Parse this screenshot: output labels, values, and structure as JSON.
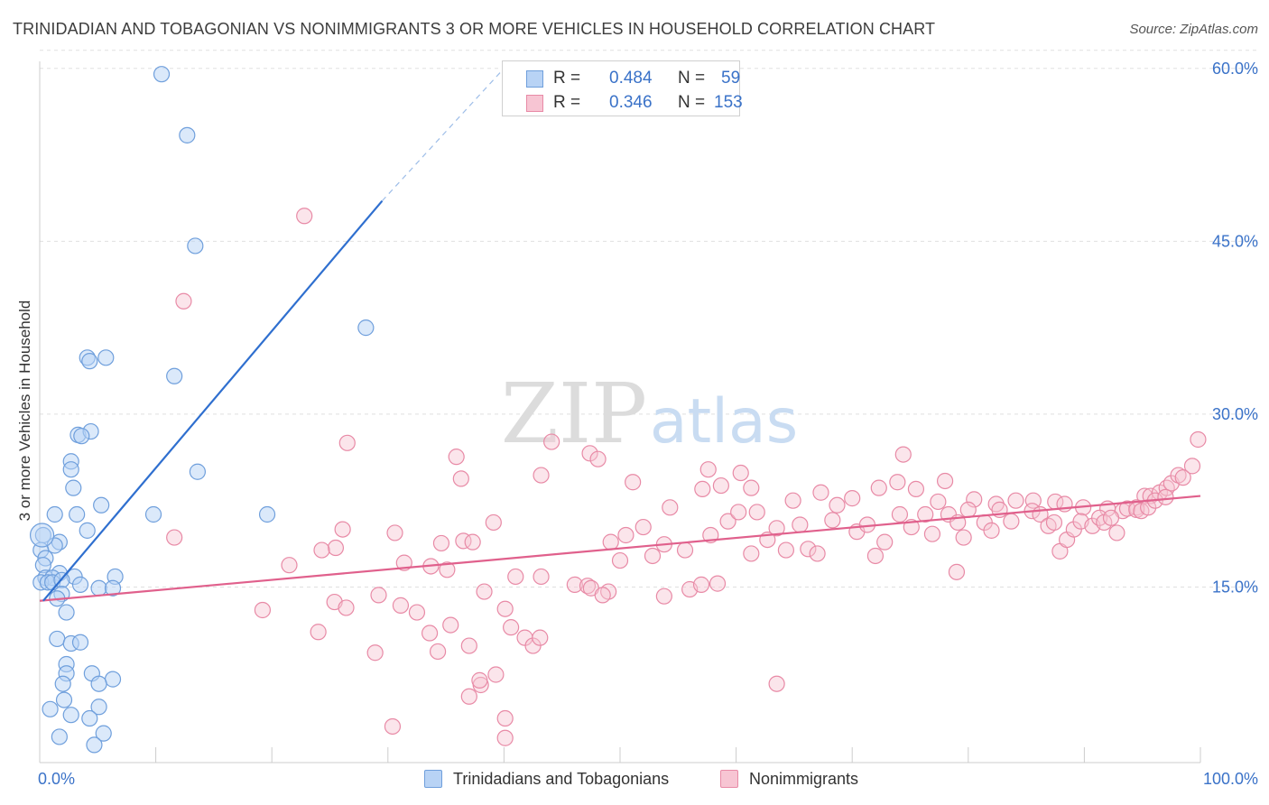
{
  "header": {
    "title": "TRINIDADIAN AND TOBAGONIAN VS NONIMMIGRANTS 3 OR MORE VEHICLES IN HOUSEHOLD CORRELATION CHART",
    "source": "Source: ZipAtlas.com"
  },
  "watermark": {
    "zip": "ZIP",
    "atlas": "atlas"
  },
  "legend_top": {
    "rows": [
      {
        "r_label": "R =",
        "r_value": "0.484",
        "n_label": "N =",
        "n_value": "59"
      },
      {
        "r_label": "R =",
        "r_value": "0.346",
        "n_label": "N =",
        "n_value": "153"
      }
    ]
  },
  "legend_bottom": {
    "items": [
      {
        "label": "Trinidadians and Tobagonians"
      },
      {
        "label": "Nonimmigrants"
      }
    ]
  },
  "colors": {
    "blue_fill": "#b8d3f5",
    "blue_stroke": "#6f9fdc",
    "blue_line": "#2f6fcf",
    "pink_fill": "#f7c5d3",
    "pink_stroke": "#e88aa6",
    "pink_line": "#e0608c",
    "tick_label": "#3a72c8",
    "grid": "#e0e0e0"
  },
  "chart_data": {
    "type": "scatter",
    "title": "TRINIDADIAN AND TOBAGONIAN VS NONIMMIGRANTS 3 OR MORE VEHICLES IN HOUSEHOLD CORRELATION CHART",
    "xlabel": "",
    "ylabel": "3 or more Vehicles in Household",
    "xlim": [
      0,
      100
    ],
    "ylim": [
      0,
      60
    ],
    "x_tick_labels": [
      "0.0%",
      "100.0%"
    ],
    "y_ticks": [
      15,
      30,
      45,
      60
    ],
    "y_tick_labels": [
      "15.0%",
      "30.0%",
      "45.0%",
      "60.0%"
    ],
    "grid": true,
    "legend_position": "top-center",
    "series": [
      {
        "name": "Trinidadians and Tobagonians",
        "r": 0.484,
        "n": 59,
        "trend": {
          "x": [
            0.3,
            29.5
          ],
          "y": [
            13.8,
            48.5
          ],
          "dash_to": [
            40,
            60
          ]
        },
        "points": [
          [
            10.5,
            59.5
          ],
          [
            12.7,
            54.2
          ],
          [
            13.4,
            44.6
          ],
          [
            28.1,
            37.5
          ],
          [
            11.6,
            33.3
          ],
          [
            4.1,
            34.9
          ],
          [
            5.7,
            34.9
          ],
          [
            4.3,
            34.6
          ],
          [
            3.3,
            28.2
          ],
          [
            4.4,
            28.5
          ],
          [
            3.6,
            28.1
          ],
          [
            2.7,
            25.9
          ],
          [
            2.7,
            25.2
          ],
          [
            13.6,
            25.0
          ],
          [
            2.9,
            23.6
          ],
          [
            5.3,
            22.1
          ],
          [
            1.3,
            21.3
          ],
          [
            3.2,
            21.3
          ],
          [
            9.8,
            21.3
          ],
          [
            19.6,
            21.3
          ],
          [
            4.1,
            19.9
          ],
          [
            0.3,
            19.5
          ],
          [
            1.7,
            18.9
          ],
          [
            1.3,
            18.6
          ],
          [
            0.1,
            18.2
          ],
          [
            0.5,
            17.5
          ],
          [
            0.3,
            16.9
          ],
          [
            1.7,
            16.2
          ],
          [
            0.5,
            15.8
          ],
          [
            1.1,
            15.8
          ],
          [
            3.0,
            15.9
          ],
          [
            6.5,
            15.9
          ],
          [
            0.1,
            15.4
          ],
          [
            0.7,
            15.4
          ],
          [
            1.1,
            15.4
          ],
          [
            1.9,
            15.6
          ],
          [
            3.5,
            15.2
          ],
          [
            5.1,
            14.9
          ],
          [
            6.3,
            14.9
          ],
          [
            1.9,
            14.4
          ],
          [
            1.5,
            14.0
          ],
          [
            2.3,
            12.8
          ],
          [
            1.5,
            10.5
          ],
          [
            2.7,
            10.1
          ],
          [
            3.5,
            10.2
          ],
          [
            2.3,
            8.3
          ],
          [
            2.3,
            7.5
          ],
          [
            4.5,
            7.5
          ],
          [
            6.3,
            7.0
          ],
          [
            2.0,
            6.6
          ],
          [
            5.1,
            6.6
          ],
          [
            2.1,
            5.2
          ],
          [
            0.9,
            4.4
          ],
          [
            5.1,
            4.6
          ],
          [
            2.7,
            3.9
          ],
          [
            4.3,
            3.6
          ],
          [
            5.5,
            2.3
          ],
          [
            4.7,
            1.3
          ],
          [
            1.7,
            2.0
          ]
        ]
      },
      {
        "name": "Nonimmigrants",
        "r": 0.346,
        "n": 153,
        "trend": {
          "x": [
            0,
            100
          ],
          "y": [
            13.8,
            22.9
          ]
        },
        "points": [
          [
            22.8,
            47.2
          ],
          [
            12.4,
            39.8
          ],
          [
            26.5,
            27.5
          ],
          [
            35.9,
            26.3
          ],
          [
            44.1,
            27.6
          ],
          [
            47.4,
            26.6
          ],
          [
            48.1,
            26.1
          ],
          [
            36.3,
            24.4
          ],
          [
            43.2,
            24.7
          ],
          [
            51.1,
            24.1
          ],
          [
            57.6,
            25.2
          ],
          [
            60.4,
            24.9
          ],
          [
            57.1,
            23.5
          ],
          [
            58.7,
            23.8
          ],
          [
            61.3,
            23.6
          ],
          [
            64.9,
            22.5
          ],
          [
            67.3,
            23.2
          ],
          [
            70.0,
            22.7
          ],
          [
            72.3,
            23.6
          ],
          [
            73.9,
            24.1
          ],
          [
            74.4,
            26.5
          ],
          [
            75.5,
            23.5
          ],
          [
            78.0,
            24.2
          ],
          [
            80.5,
            22.6
          ],
          [
            82.4,
            22.2
          ],
          [
            84.1,
            22.5
          ],
          [
            85.6,
            22.5
          ],
          [
            87.5,
            22.4
          ],
          [
            88.3,
            22.2
          ],
          [
            89.9,
            21.9
          ],
          [
            92.0,
            21.8
          ],
          [
            93.3,
            21.6
          ],
          [
            94.5,
            21.9
          ],
          [
            95.2,
            22.9
          ],
          [
            95.7,
            22.9
          ],
          [
            96.5,
            23.2
          ],
          [
            97.1,
            23.6
          ],
          [
            97.5,
            24.0
          ],
          [
            98.1,
            24.7
          ],
          [
            98.5,
            24.5
          ],
          [
            99.3,
            25.5
          ],
          [
            99.8,
            27.8
          ],
          [
            39.1,
            20.6
          ],
          [
            30.6,
            19.7
          ],
          [
            26.1,
            20.0
          ],
          [
            25.5,
            18.4
          ],
          [
            24.3,
            18.2
          ],
          [
            21.5,
            16.9
          ],
          [
            11.6,
            19.3
          ],
          [
            31.4,
            17.1
          ],
          [
            33.7,
            16.8
          ],
          [
            35.1,
            16.5
          ],
          [
            34.6,
            18.8
          ],
          [
            36.5,
            19.0
          ],
          [
            37.3,
            18.9
          ],
          [
            41.0,
            15.9
          ],
          [
            43.2,
            15.9
          ],
          [
            46.1,
            15.2
          ],
          [
            47.2,
            15.1
          ],
          [
            49.0,
            14.6
          ],
          [
            49.2,
            18.9
          ],
          [
            50.5,
            19.5
          ],
          [
            52.0,
            20.2
          ],
          [
            52.8,
            17.7
          ],
          [
            53.8,
            18.7
          ],
          [
            54.3,
            21.9
          ],
          [
            55.6,
            18.2
          ],
          [
            56.0,
            14.8
          ],
          [
            57.8,
            19.5
          ],
          [
            58.4,
            15.3
          ],
          [
            59.3,
            20.7
          ],
          [
            60.2,
            21.5
          ],
          [
            61.3,
            17.9
          ],
          [
            61.8,
            21.5
          ],
          [
            62.7,
            19.1
          ],
          [
            63.5,
            20.1
          ],
          [
            64.3,
            18.2
          ],
          [
            65.5,
            20.4
          ],
          [
            66.2,
            18.3
          ],
          [
            67.0,
            17.9
          ],
          [
            68.3,
            20.8
          ],
          [
            68.7,
            22.1
          ],
          [
            70.4,
            19.8
          ],
          [
            71.3,
            20.4
          ],
          [
            72.0,
            17.7
          ],
          [
            72.8,
            18.9
          ],
          [
            74.1,
            21.3
          ],
          [
            75.1,
            20.2
          ],
          [
            76.3,
            21.3
          ],
          [
            76.9,
            19.6
          ],
          [
            77.4,
            22.4
          ],
          [
            78.3,
            21.3
          ],
          [
            79.1,
            20.6
          ],
          [
            79.6,
            19.3
          ],
          [
            80.0,
            21.7
          ],
          [
            81.4,
            20.6
          ],
          [
            82.0,
            19.9
          ],
          [
            82.7,
            21.7
          ],
          [
            83.7,
            20.7
          ],
          [
            85.5,
            21.6
          ],
          [
            86.2,
            21.3
          ],
          [
            86.9,
            20.3
          ],
          [
            87.4,
            20.6
          ],
          [
            87.9,
            18.1
          ],
          [
            88.5,
            19.1
          ],
          [
            89.1,
            20.0
          ],
          [
            89.7,
            20.7
          ],
          [
            90.7,
            20.3
          ],
          [
            91.3,
            21.0
          ],
          [
            91.7,
            20.6
          ],
          [
            92.3,
            21.0
          ],
          [
            92.8,
            19.7
          ],
          [
            93.7,
            21.8
          ],
          [
            94.5,
            21.7
          ],
          [
            94.9,
            21.6
          ],
          [
            95.5,
            21.9
          ],
          [
            96.1,
            22.5
          ],
          [
            97.0,
            22.8
          ],
          [
            19.2,
            13.0
          ],
          [
            25.4,
            13.7
          ],
          [
            26.4,
            13.2
          ],
          [
            29.2,
            14.3
          ],
          [
            31.1,
            13.4
          ],
          [
            32.5,
            12.8
          ],
          [
            33.6,
            11.0
          ],
          [
            35.4,
            11.7
          ],
          [
            34.3,
            9.4
          ],
          [
            37.0,
            9.9
          ],
          [
            38.3,
            14.6
          ],
          [
            40.1,
            13.1
          ],
          [
            40.6,
            11.5
          ],
          [
            41.8,
            10.6
          ],
          [
            42.5,
            9.9
          ],
          [
            43.1,
            10.6
          ],
          [
            47.5,
            14.9
          ],
          [
            48.5,
            14.3
          ],
          [
            53.8,
            14.2
          ],
          [
            57.0,
            15.2
          ],
          [
            24.0,
            11.1
          ],
          [
            28.9,
            9.3
          ],
          [
            39.3,
            7.4
          ],
          [
            38.0,
            6.5
          ],
          [
            37.9,
            6.9
          ],
          [
            37.0,
            5.5
          ],
          [
            40.1,
            3.6
          ],
          [
            30.4,
            2.9
          ],
          [
            40.1,
            1.9
          ],
          [
            63.5,
            6.6
          ],
          [
            79.0,
            16.3
          ],
          [
            50.0,
            17.3
          ]
        ]
      }
    ]
  }
}
